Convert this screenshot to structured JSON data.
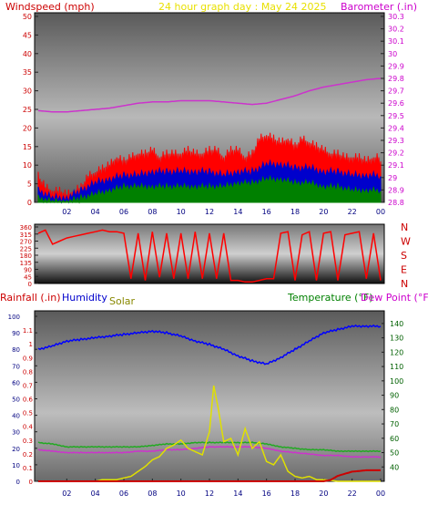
{
  "title": "24 hour graph day : May 24 2025",
  "panels": {
    "wind": {
      "left_title": "Windspeed (mph)",
      "right_title": "Barometer (.in)"
    },
    "direction": {
      "labels": [
        "N",
        "W",
        "S",
        "E",
        "N"
      ]
    },
    "weather": {
      "rain_title": "Rainfall (.in)",
      "humidity_title": "Humidity",
      "solar_title": "Solar",
      "temp_title": "Temperature (°F)",
      "dew_title": "Dew Point (°F)"
    }
  },
  "colors": {
    "title": "#e8e000",
    "wind_axis": "#cc0000",
    "baro_axis": "#cc00cc",
    "gust": "#ff0000",
    "avg": "#0000cc",
    "low": "#008000",
    "baro_line": "#cc33cc",
    "dir_line": "#ff0000",
    "humidity": "#0000ff",
    "solar": "#e0e000",
    "temp": "#22aa22",
    "dew": "#cc33cc",
    "rain": "#cc0000"
  },
  "chart_data": [
    {
      "type": "line",
      "title": "24 hour graph day : May 24 2025",
      "xlabel": "",
      "x_ticks": [
        "02",
        "04",
        "06",
        "08",
        "10",
        "12",
        "14",
        "16",
        "18",
        "20",
        "22",
        "00"
      ],
      "ylabel": "Windspeed (mph)",
      "ylim": [
        0,
        50
      ],
      "y_ticks": [
        0,
        5,
        10,
        15,
        20,
        25,
        30,
        35,
        40,
        45,
        50
      ],
      "y2label": "Barometer (.in)",
      "y2lim": [
        28.8,
        30.3
      ],
      "y2_ticks": [
        "28.8",
        "28.9",
        "29",
        "29.1",
        "29.2",
        "29.3",
        "29.4",
        "29.5",
        "29.6",
        "29.7",
        "29.8",
        "29.9",
        "30",
        "30.1",
        "30.2",
        "30.3"
      ],
      "series": [
        {
          "name": "gust",
          "axis": "left",
          "x": [
            0,
            0.5,
            1,
            1.5,
            2,
            2.5,
            3,
            3.5,
            4,
            4.5,
            5,
            5.5,
            6,
            6.5,
            7,
            7.5,
            8,
            8.5,
            9,
            9.5,
            10,
            10.5,
            11,
            11.5,
            12,
            12.5,
            13,
            13.5,
            14,
            14.5,
            15,
            15.5,
            16,
            16.5,
            17,
            17.5,
            18,
            18.5,
            19,
            19.5,
            20,
            20.5,
            21,
            21.5,
            22,
            22.5,
            23,
            23.5,
            24
          ],
          "values": [
            6,
            3,
            2,
            2,
            1,
            2,
            3,
            6,
            7,
            8,
            9,
            11,
            10,
            11,
            12,
            12,
            13,
            11,
            12,
            12,
            12,
            13,
            12,
            12,
            13,
            13,
            11,
            13,
            13,
            11,
            12,
            16,
            17,
            16,
            15,
            16,
            14,
            16,
            15,
            14,
            13,
            12,
            12,
            11,
            11,
            11,
            10,
            11,
            11
          ]
        },
        {
          "name": "avg",
          "axis": "left",
          "x": [
            0,
            1,
            2,
            3,
            4,
            5,
            6,
            7,
            8,
            9,
            10,
            11,
            12,
            13,
            14,
            15,
            16,
            17,
            18,
            19,
            20,
            21,
            22,
            23,
            24
          ],
          "values": [
            3,
            1,
            1,
            3,
            5,
            6,
            7,
            7,
            8,
            8,
            8,
            8,
            8,
            7,
            8,
            8,
            10,
            10,
            9,
            9,
            8,
            8,
            7,
            7,
            7
          ]
        },
        {
          "name": "low",
          "axis": "left",
          "x": [
            0,
            1,
            2,
            3,
            4,
            5,
            6,
            7,
            8,
            9,
            10,
            11,
            12,
            13,
            14,
            15,
            16,
            17,
            18,
            19,
            20,
            21,
            22,
            23,
            24
          ],
          "values": [
            1,
            0,
            0,
            1,
            2,
            3,
            4,
            4,
            4,
            4,
            4,
            4,
            4,
            4,
            5,
            5,
            6,
            6,
            5,
            5,
            4,
            4,
            3,
            3,
            3
          ]
        },
        {
          "name": "barometer",
          "axis": "right",
          "x": [
            0,
            1,
            2,
            3,
            4,
            5,
            6,
            7,
            8,
            9,
            10,
            11,
            12,
            13,
            14,
            15,
            16,
            17,
            18,
            19,
            20,
            21,
            22,
            23,
            24
          ],
          "values": [
            29.54,
            29.53,
            29.53,
            29.54,
            29.55,
            29.56,
            29.58,
            29.6,
            29.61,
            29.61,
            29.62,
            29.62,
            29.62,
            29.61,
            29.6,
            29.59,
            29.6,
            29.63,
            29.66,
            29.7,
            29.73,
            29.75,
            29.77,
            29.79,
            29.8
          ]
        }
      ]
    },
    {
      "type": "line",
      "xlabel": "",
      "ylabel": "",
      "ylim": [
        0,
        360
      ],
      "y_ticks": [
        0,
        45,
        90,
        135,
        180,
        225,
        270,
        315,
        360
      ],
      "series": [
        {
          "name": "direction",
          "x": [
            0,
            0.5,
            1,
            1.5,
            2,
            2.5,
            3,
            3.5,
            4,
            4.5,
            5,
            5.5,
            6,
            6.5,
            7,
            7.5,
            8,
            8.5,
            9,
            9.5,
            10,
            10.5,
            11,
            11.5,
            12,
            12.5,
            13,
            13.5,
            14,
            14.5,
            15,
            15.5,
            16,
            16.5,
            17,
            17.5,
            18,
            18.5,
            19,
            19.5,
            20,
            20.5,
            21,
            21.5,
            22,
            22.5,
            23,
            23.5,
            24
          ],
          "values": [
            320,
            340,
            250,
            270,
            290,
            300,
            310,
            320,
            330,
            340,
            330,
            330,
            320,
            30,
            320,
            20,
            330,
            40,
            320,
            30,
            320,
            30,
            330,
            30,
            320,
            30,
            320,
            20,
            20,
            10,
            10,
            20,
            30,
            30,
            320,
            330,
            20,
            310,
            330,
            20,
            320,
            330,
            20,
            310,
            320,
            330,
            30,
            320,
            20
          ]
        }
      ]
    },
    {
      "type": "line",
      "xlabel": "",
      "x_ticks": [
        "02",
        "04",
        "06",
        "08",
        "10",
        "12",
        "14",
        "16",
        "18",
        "20",
        "22",
        "00"
      ],
      "ylabel": "Humidity",
      "ylim": [
        0,
        100
      ],
      "y_ticks": [
        0,
        10,
        20,
        30,
        40,
        50,
        60,
        70,
        80,
        90,
        100
      ],
      "y_rain_ticks": [
        "0",
        "0.1",
        "0.2",
        "0.3",
        "0.4",
        "0.5",
        "0.6",
        "0.7",
        "0.8",
        "0.9",
        "1",
        "1.1"
      ],
      "y_rain_lim": [
        0,
        1.2
      ],
      "y2label": "Temperature (°F)",
      "y2lim": [
        30,
        145
      ],
      "y2_ticks": [
        40,
        50,
        60,
        70,
        80,
        90,
        100,
        110,
        120,
        130,
        140
      ],
      "series": [
        {
          "name": "Humidity",
          "x": [
            0,
            1,
            2,
            3,
            4,
            5,
            6,
            7,
            8,
            9,
            10,
            11,
            12,
            13,
            14,
            15,
            16,
            17,
            18,
            19,
            20,
            21,
            22,
            23,
            24
          ],
          "values": [
            80,
            82,
            85,
            86,
            87,
            88,
            89,
            90,
            91,
            90,
            88,
            85,
            83,
            80,
            76,
            73,
            71,
            75,
            80,
            85,
            90,
            92,
            94,
            94,
            94
          ]
        },
        {
          "name": "Temperature",
          "x": [
            0,
            1,
            2,
            3,
            4,
            5,
            6,
            7,
            8,
            9,
            10,
            11,
            12,
            13,
            14,
            15,
            16,
            17,
            18,
            19,
            20,
            21,
            22,
            23,
            24
          ],
          "values": [
            57,
            56,
            54,
            54,
            54,
            54,
            54,
            54,
            55,
            56,
            56,
            57,
            57,
            57,
            57,
            57,
            56,
            54,
            53,
            52,
            52,
            51,
            51,
            51,
            51
          ]
        },
        {
          "name": "Dew Point",
          "x": [
            0,
            1,
            2,
            3,
            4,
            5,
            6,
            7,
            8,
            9,
            10,
            11,
            12,
            13,
            14,
            15,
            16,
            17,
            18,
            19,
            20,
            21,
            22,
            23,
            24
          ],
          "values": [
            52,
            51,
            50,
            50,
            50,
            50,
            50,
            51,
            51,
            52,
            52,
            53,
            54,
            54,
            54,
            54,
            53,
            51,
            50,
            49,
            48,
            48,
            47,
            47,
            47
          ]
        },
        {
          "name": "Solar",
          "x": [
            0,
            1,
            2,
            3,
            4,
            4.5,
            5,
            5.5,
            6,
            6.5,
            7,
            7.5,
            8,
            8.5,
            9,
            9.5,
            10,
            10.5,
            11,
            11.5,
            12,
            12.3,
            12.6,
            13,
            13.5,
            14,
            14.5,
            15,
            15.5,
            16,
            16.5,
            17,
            17.5,
            18,
            18.5,
            19,
            19.5,
            20,
            21,
            22,
            23,
            24
          ],
          "values": [
            0,
            0,
            0,
            0,
            0,
            1,
            1,
            1,
            2,
            3,
            6,
            9,
            13,
            15,
            20,
            22,
            25,
            20,
            18,
            16,
            30,
            58,
            45,
            24,
            26,
            16,
            32,
            20,
            24,
            12,
            10,
            16,
            6,
            3,
            2,
            3,
            1,
            1,
            0,
            0,
            0,
            0
          ]
        },
        {
          "name": "Rainfall",
          "x": [
            0,
            19,
            20,
            20.5,
            21,
            22,
            23,
            24
          ],
          "values": [
            0,
            0,
            0,
            0.01,
            0.04,
            0.07,
            0.08,
            0.08
          ]
        }
      ]
    }
  ]
}
